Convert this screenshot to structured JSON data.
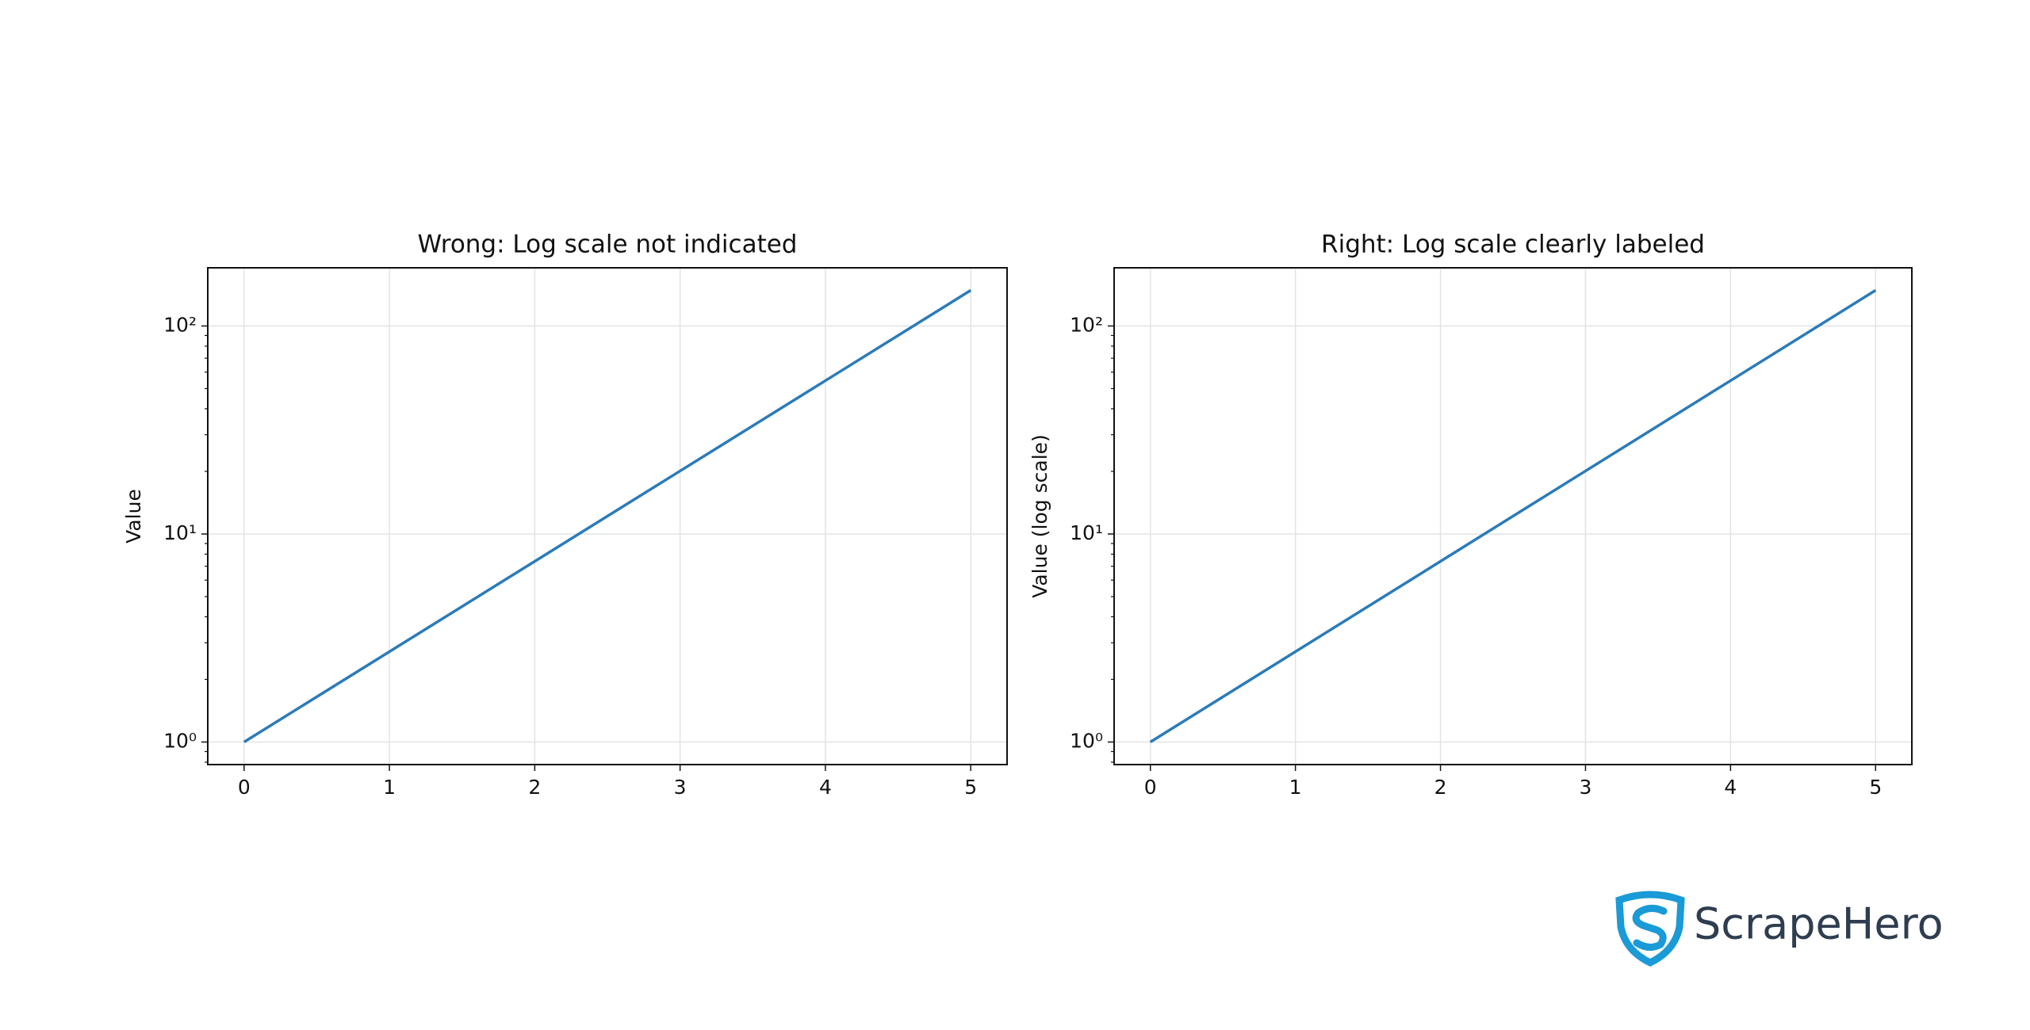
{
  "chart_data": [
    {
      "type": "line",
      "title": "Wrong: Log scale not indicated",
      "ylabel": "Value",
      "x": [
        0,
        1,
        2,
        3,
        4,
        5
      ],
      "series": [
        {
          "name": null,
          "color": "#2b7bb9",
          "values": [
            1,
            2.718,
            7.389,
            20.09,
            54.6,
            148.4
          ]
        }
      ],
      "xlim": [
        -0.25,
        5.25
      ],
      "xticks": [
        0,
        1,
        2,
        3,
        4,
        5
      ],
      "ylim": [
        0.779,
        190.4
      ],
      "ylog": true,
      "yticks": [
        {
          "value": 1,
          "label": "10⁰"
        },
        {
          "value": 10,
          "label": "10¹"
        },
        {
          "value": 100,
          "label": "10²"
        }
      ],
      "yminorticks": [
        0.8,
        0.9,
        2,
        3,
        4,
        5,
        6,
        7,
        8,
        9,
        20,
        30,
        40,
        50,
        60,
        70,
        80,
        90
      ],
      "grid": true
    },
    {
      "type": "line",
      "title": "Right: Log scale clearly labeled",
      "ylabel": "Value (log scale)",
      "x": [
        0,
        1,
        2,
        3,
        4,
        5
      ],
      "series": [
        {
          "name": null,
          "color": "#2b7bb9",
          "values": [
            1,
            2.718,
            7.389,
            20.09,
            54.6,
            148.4
          ]
        }
      ],
      "xlim": [
        -0.25,
        5.25
      ],
      "xticks": [
        0,
        1,
        2,
        3,
        4,
        5
      ],
      "ylim": [
        0.779,
        190.4
      ],
      "ylog": true,
      "yticks": [
        {
          "value": 1,
          "label": "10⁰"
        },
        {
          "value": 10,
          "label": "10¹"
        },
        {
          "value": 100,
          "label": "10²"
        }
      ],
      "yminorticks": [
        0.8,
        0.9,
        2,
        3,
        4,
        5,
        6,
        7,
        8,
        9,
        20,
        30,
        40,
        50,
        60,
        70,
        80,
        90
      ],
      "grid": true
    }
  ],
  "logo_text": "ScrapeHero"
}
